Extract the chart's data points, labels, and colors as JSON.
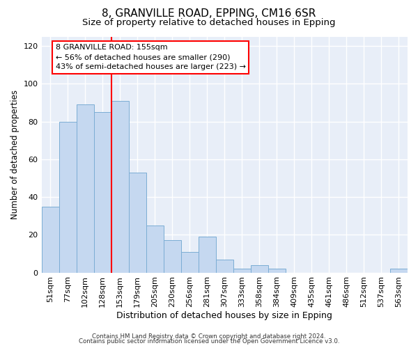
{
  "title1": "8, GRANVILLE ROAD, EPPING, CM16 6SR",
  "title2": "Size of property relative to detached houses in Epping",
  "xlabel": "Distribution of detached houses by size in Epping",
  "ylabel": "Number of detached properties",
  "bin_labels": [
    "51sqm",
    "77sqm",
    "102sqm",
    "128sqm",
    "153sqm",
    "179sqm",
    "205sqm",
    "230sqm",
    "256sqm",
    "281sqm",
    "307sqm",
    "333sqm",
    "358sqm",
    "384sqm",
    "409sqm",
    "435sqm",
    "461sqm",
    "486sqm",
    "512sqm",
    "537sqm",
    "563sqm"
  ],
  "bar_heights": [
    35,
    80,
    89,
    85,
    91,
    53,
    25,
    17,
    11,
    19,
    7,
    2,
    4,
    2,
    0,
    0,
    0,
    0,
    0,
    0,
    2
  ],
  "bar_color": "#c5d8f0",
  "bar_edge_color": "#7badd4",
  "property_line_index": 4,
  "property_line_color": "red",
  "annotation_text": "8 GRANVILLE ROAD: 155sqm\n← 56% of detached houses are smaller (290)\n43% of semi-detached houses are larger (223) →",
  "annotation_box_color": "white",
  "annotation_box_edge": "red",
  "ylim": [
    0,
    125
  ],
  "yticks": [
    0,
    20,
    40,
    60,
    80,
    100,
    120
  ],
  "fig_bg": "#ffffff",
  "ax_bg": "#e8eef8",
  "grid_color": "#ffffff",
  "title1_fontsize": 11,
  "title2_fontsize": 9.5,
  "xlabel_fontsize": 9,
  "ylabel_fontsize": 8.5,
  "tick_fontsize": 8,
  "footer1": "Contains HM Land Registry data © Crown copyright and database right 2024.",
  "footer2": "Contains public sector information licensed under the Open Government Licence v3.0."
}
